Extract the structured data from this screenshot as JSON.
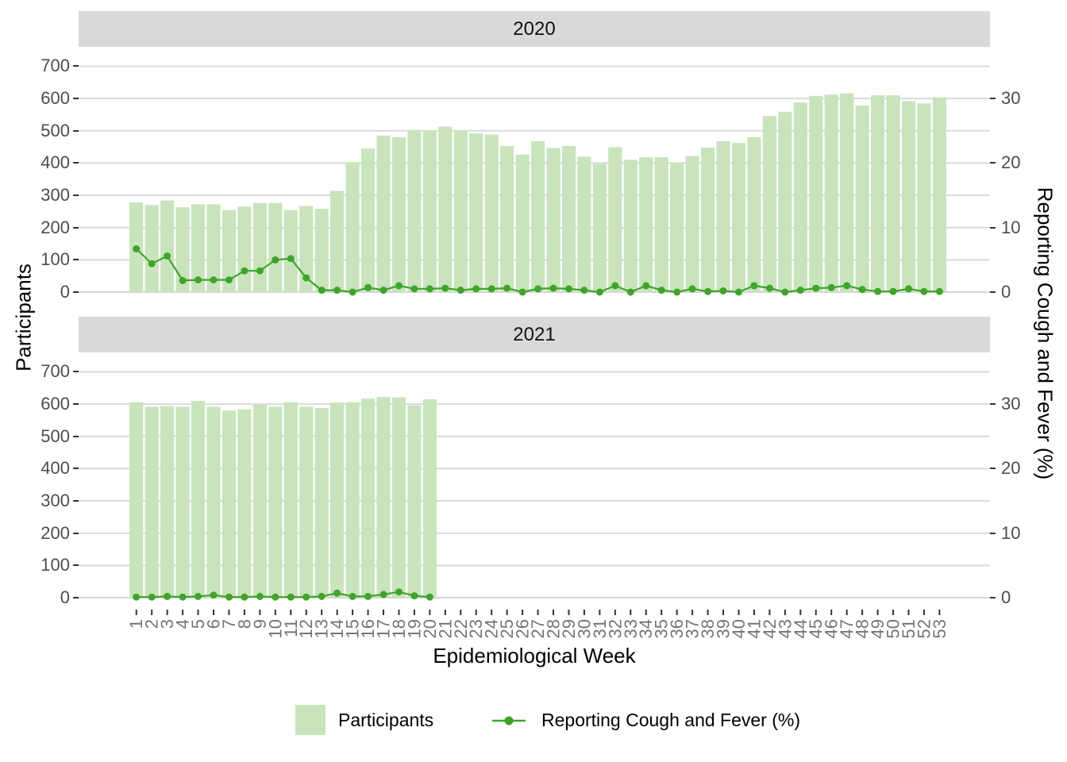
{
  "colors": {
    "bar_fill": "#c9e4bc",
    "line": "#3fa32c",
    "strip_bg": "#d9d9d9",
    "grid": "#d9d9d9",
    "zero_line": "#d4d4d4",
    "axis_text_y": "#4d4d4d",
    "axis_text_x": "#757575",
    "tick_mark": "#333333"
  },
  "axes": {
    "left_title": "Participants",
    "right_title": "Reporting Cough and Fever (%)",
    "x_title": "Epidemiological Week",
    "left_ticks": [
      0,
      100,
      200,
      300,
      400,
      500,
      600,
      700
    ],
    "right_ticks": [
      0,
      10,
      20,
      30
    ],
    "left_range": [
      0,
      700
    ],
    "right_range": [
      0,
      35
    ],
    "grid": "major-horizontal"
  },
  "legend": {
    "position": "bottom",
    "items": [
      {
        "label": "Participants",
        "type": "bar-swatch"
      },
      {
        "label": "Reporting Cough and Fever (%)",
        "type": "line-marker"
      }
    ]
  },
  "chart_data": [
    {
      "type": "bar",
      "facet": "2020",
      "categories": [
        1,
        2,
        3,
        4,
        5,
        6,
        7,
        8,
        9,
        10,
        11,
        12,
        13,
        14,
        15,
        16,
        17,
        18,
        19,
        20,
        21,
        22,
        23,
        24,
        25,
        26,
        27,
        28,
        29,
        30,
        31,
        32,
        33,
        34,
        35,
        36,
        37,
        38,
        39,
        40,
        41,
        42,
        43,
        44,
        45,
        46,
        47,
        48,
        49,
        50,
        51,
        52,
        53
      ],
      "series": [
        {
          "name": "Participants",
          "type": "bar",
          "axis": "left",
          "values": [
            278,
            270,
            284,
            263,
            272,
            272,
            254,
            265,
            276,
            276,
            254,
            267,
            258,
            314,
            403,
            445,
            485,
            480,
            503,
            501,
            513,
            501,
            492,
            488,
            453,
            426,
            468,
            447,
            453,
            420,
            398,
            449,
            410,
            418,
            418,
            402,
            422,
            448,
            468,
            462,
            480,
            546,
            559,
            588,
            608,
            612,
            616,
            578,
            610,
            610,
            592,
            585,
            604
          ]
        },
        {
          "name": "Reporting Cough and Fever (%)",
          "type": "line",
          "axis": "right",
          "values": [
            6.7,
            4.4,
            5.6,
            1.8,
            1.9,
            1.9,
            1.9,
            3.3,
            3.3,
            5.0,
            5.2,
            2.2,
            0.3,
            0.3,
            0.0,
            0.7,
            0.3,
            1.0,
            0.5,
            0.5,
            0.6,
            0.3,
            0.5,
            0.5,
            0.6,
            0.0,
            0.5,
            0.6,
            0.5,
            0.3,
            0.0,
            1.0,
            0.0,
            1.0,
            0.3,
            0.0,
            0.5,
            0.1,
            0.2,
            0.0,
            1.0,
            0.6,
            0.0,
            0.3,
            0.6,
            0.7,
            1.0,
            0.4,
            0.1,
            0.1,
            0.5,
            0.1,
            0.1
          ]
        }
      ],
      "left_ylim": [
        0,
        700
      ],
      "right_ylim": [
        0,
        35
      ]
    },
    {
      "type": "bar",
      "facet": "2021",
      "categories": [
        1,
        2,
        3,
        4,
        5,
        6,
        7,
        8,
        9,
        10,
        11,
        12,
        13,
        14,
        15,
        16,
        17,
        18,
        19,
        20
      ],
      "series": [
        {
          "name": "Participants",
          "type": "bar",
          "axis": "left",
          "values": [
            606,
            592,
            594,
            592,
            610,
            592,
            580,
            584,
            598,
            592,
            606,
            592,
            588,
            605,
            606,
            617,
            622,
            621,
            596,
            615
          ]
        },
        {
          "name": "Reporting Cough and Fever (%)",
          "type": "line",
          "axis": "right",
          "values": [
            0.1,
            0.1,
            0.2,
            0.1,
            0.2,
            0.4,
            0.1,
            0.1,
            0.2,
            0.1,
            0.1,
            0.1,
            0.2,
            0.7,
            0.2,
            0.2,
            0.5,
            0.9,
            0.3,
            0.1
          ]
        }
      ],
      "left_ylim": [
        0,
        700
      ],
      "right_ylim": [
        0,
        35
      ]
    }
  ]
}
